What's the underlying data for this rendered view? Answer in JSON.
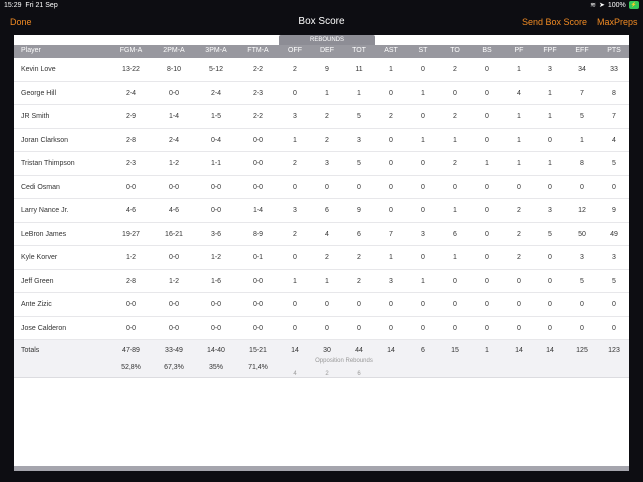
{
  "status": {
    "time": "15:29",
    "date": "Fri 21 Sep",
    "battery": "100%",
    "charging": "⚡"
  },
  "nav": {
    "done": "Done",
    "title": "Box Score",
    "send": "Send Box Score",
    "maxpreps": "MaxPreps"
  },
  "rebounds_label": "REBOUNDS",
  "columns": [
    "Player",
    "FGM-A",
    "2PM-A",
    "3PM-A",
    "FTM-A",
    "OFF",
    "DEF",
    "TOT",
    "AST",
    "ST",
    "TO",
    "BS",
    "PF",
    "FPF",
    "EFF",
    "PTS"
  ],
  "players": [
    [
      "Kevin Love",
      "13-22",
      "8-10",
      "5-12",
      "2-2",
      "2",
      "9",
      "11",
      "1",
      "0",
      "2",
      "0",
      "1",
      "3",
      "34",
      "33"
    ],
    [
      "George Hill",
      "2-4",
      "0-0",
      "2-4",
      "2-3",
      "0",
      "1",
      "1",
      "0",
      "1",
      "0",
      "0",
      "4",
      "1",
      "7",
      "8"
    ],
    [
      "JR Smith",
      "2-9",
      "1-4",
      "1-5",
      "2-2",
      "3",
      "2",
      "5",
      "2",
      "0",
      "2",
      "0",
      "1",
      "1",
      "5",
      "7"
    ],
    [
      "Joran Clarkson",
      "2-8",
      "2-4",
      "0-4",
      "0-0",
      "1",
      "2",
      "3",
      "0",
      "1",
      "1",
      "0",
      "1",
      "0",
      "1",
      "4"
    ],
    [
      "Tristan Thimpson",
      "2-3",
      "1-2",
      "1-1",
      "0-0",
      "2",
      "3",
      "5",
      "0",
      "0",
      "2",
      "1",
      "1",
      "1",
      "8",
      "5"
    ],
    [
      "Cedi Osman",
      "0-0",
      "0-0",
      "0-0",
      "0-0",
      "0",
      "0",
      "0",
      "0",
      "0",
      "0",
      "0",
      "0",
      "0",
      "0",
      "0"
    ],
    [
      "Larry Nance Jr.",
      "4-6",
      "4-6",
      "0-0",
      "1-4",
      "3",
      "6",
      "9",
      "0",
      "0",
      "1",
      "0",
      "2",
      "3",
      "12",
      "9"
    ],
    [
      "LeBron James",
      "19-27",
      "16-21",
      "3-6",
      "8-9",
      "2",
      "4",
      "6",
      "7",
      "3",
      "6",
      "0",
      "2",
      "5",
      "50",
      "49"
    ],
    [
      "Kyle Korver",
      "1-2",
      "0-0",
      "1-2",
      "0-1",
      "0",
      "2",
      "2",
      "1",
      "0",
      "1",
      "0",
      "2",
      "0",
      "3",
      "3"
    ],
    [
      "Jeff Green",
      "2-8",
      "1-2",
      "1-6",
      "0-0",
      "1",
      "1",
      "2",
      "3",
      "1",
      "0",
      "0",
      "0",
      "0",
      "5",
      "5"
    ],
    [
      "Ante Zizic",
      "0-0",
      "0-0",
      "0-0",
      "0-0",
      "0",
      "0",
      "0",
      "0",
      "0",
      "0",
      "0",
      "0",
      "0",
      "0",
      "0"
    ],
    [
      "Jose Calderon",
      "0-0",
      "0-0",
      "0-0",
      "0-0",
      "0",
      "0",
      "0",
      "0",
      "0",
      "0",
      "0",
      "0",
      "0",
      "0",
      "0"
    ]
  ],
  "totals": {
    "label": "Totals",
    "values": [
      "47-89",
      "33-49",
      "14-40",
      "15-21",
      "14",
      "30",
      "44",
      "14",
      "6",
      "15",
      "1",
      "14",
      "14",
      "125",
      "123"
    ],
    "percents": [
      "52,8%",
      "67,3%",
      "35%",
      "71,4%"
    ],
    "opp_caption": "Opposition Rebounds",
    "opp_values": [
      "4",
      "2",
      "6"
    ]
  }
}
